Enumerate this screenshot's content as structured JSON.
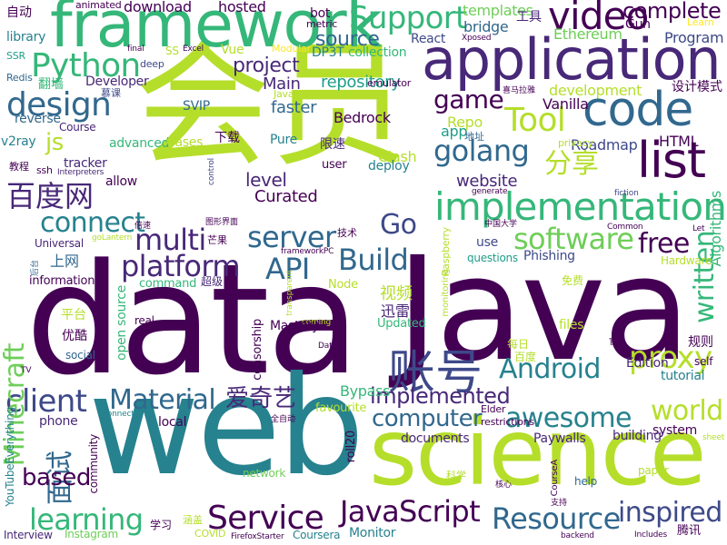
{
  "palette": {
    "dark_purple": "#440154",
    "indigo": "#482878",
    "blue": "#3e4989",
    "slate_blue": "#31688e",
    "teal_blue": "#26828e",
    "teal": "#1f9e89",
    "green": "#35b779",
    "light_green": "#6ece58",
    "lime": "#b5de2b",
    "yellow": "#fde725"
  },
  "words": [
    {
      "text": "data",
      "color": "#440154"
    },
    {
      "text": "Java",
      "color": "#440154"
    },
    {
      "text": "web",
      "color": "#26828e"
    },
    {
      "text": "会员",
      "color": "#b5de2b"
    },
    {
      "text": "science",
      "color": "#b5de2b"
    },
    {
      "text": "application",
      "color": "#482878"
    },
    {
      "text": "framework",
      "color": "#35b779"
    },
    {
      "text": "code",
      "color": "#31688e"
    },
    {
      "text": "list",
      "color": "#440154"
    },
    {
      "text": "implementation",
      "color": "#35b779"
    },
    {
      "text": "账号",
      "color": "#3e4989"
    },
    {
      "text": "video",
      "color": "#440154"
    },
    {
      "text": "Python",
      "color": "#35b779"
    },
    {
      "text": "design",
      "color": "#31688e"
    },
    {
      "text": "Support",
      "color": "#35b779"
    },
    {
      "text": "Tool",
      "color": "#b5de2b"
    },
    {
      "text": "game",
      "color": "#440154"
    },
    {
      "text": "golang",
      "color": "#31688e"
    },
    {
      "text": "分享",
      "color": "#b5de2b"
    },
    {
      "text": "百度网",
      "color": "#482878"
    },
    {
      "text": "Service",
      "color": "#440154"
    },
    {
      "text": "JavaScript",
      "color": "#440154"
    },
    {
      "text": "Resource",
      "color": "#31688e"
    },
    {
      "text": "learning",
      "color": "#35b779"
    },
    {
      "text": "Build",
      "color": "#31688e"
    },
    {
      "text": "platform",
      "color": "#482878"
    },
    {
      "text": "API",
      "color": "#31688e"
    },
    {
      "text": "server",
      "color": "#31688e"
    },
    {
      "text": "software",
      "color": "#6ece58"
    },
    {
      "text": "multi",
      "color": "#482878"
    },
    {
      "text": "connect",
      "color": "#26828e"
    },
    {
      "text": "client",
      "color": "#3e4989"
    },
    {
      "text": "Material",
      "color": "#31688e"
    },
    {
      "text": "Android",
      "color": "#26828e"
    },
    {
      "text": "awesome",
      "color": "#26828e"
    },
    {
      "text": "proxy",
      "color": "#b5de2b"
    },
    {
      "text": "written",
      "color": "#35b779"
    },
    {
      "text": "free",
      "color": "#440154"
    },
    {
      "text": "world",
      "color": "#b5de2b"
    },
    {
      "text": "inspired",
      "color": "#3e4989"
    },
    {
      "text": "Minecraft",
      "color": "#6ece58"
    },
    {
      "text": "面试",
      "color": "#31688e"
    },
    {
      "text": "based",
      "color": "#440154"
    },
    {
      "text": "爱奇艺",
      "color": "#482878"
    },
    {
      "text": "computer",
      "color": "#31688e"
    },
    {
      "text": "implemented",
      "color": "#482878"
    },
    {
      "text": "Go",
      "color": "#3e4989"
    },
    {
      "text": "js",
      "color": "#b5de2b"
    },
    {
      "text": "complete",
      "color": "#440154"
    },
    {
      "text": "project",
      "color": "#482878"
    },
    {
      "text": "source",
      "color": "#31688e"
    },
    {
      "text": "repository",
      "color": "#1f9e89"
    },
    {
      "text": "website",
      "color": "#482878"
    },
    {
      "text": "level",
      "color": "#482878"
    },
    {
      "text": "Curated",
      "color": "#440154"
    },
    {
      "text": "Main",
      "color": "#482878"
    },
    {
      "text": "faster",
      "color": "#31688e"
    },
    {
      "text": "Bedrock",
      "color": "#440154"
    },
    {
      "text": "development",
      "color": "#b5de2b"
    },
    {
      "text": "Vanilla",
      "color": "#440154"
    },
    {
      "text": "Repo",
      "color": "#b5de2b"
    },
    {
      "text": "app",
      "color": "#1f9e89"
    },
    {
      "text": "Algorithms",
      "color": "#35b779"
    },
    {
      "text": "HTML",
      "color": "#440154"
    },
    {
      "text": "Roadmap",
      "color": "#3e4989"
    },
    {
      "text": "privacy",
      "color": "#b5de2b"
    },
    {
      "text": "Ethereum",
      "color": "#6ece58"
    },
    {
      "text": "Program",
      "color": "#3e4989"
    },
    {
      "text": "Gun",
      "color": "#440154"
    },
    {
      "text": "templates",
      "color": "#6ece58"
    },
    {
      "text": "bridge",
      "color": "#31688e"
    },
    {
      "text": "React",
      "color": "#3e4989"
    },
    {
      "text": "collection",
      "color": "#35b779"
    },
    {
      "text": "DP3T",
      "color": "#26828e"
    },
    {
      "text": "emulator",
      "color": "#440154"
    },
    {
      "text": "hosted",
      "color": "#440154"
    },
    {
      "text": "download",
      "color": "#440154"
    },
    {
      "text": "animated",
      "color": "#440154"
    },
    {
      "text": "bot",
      "color": "#440154"
    },
    {
      "text": "metric",
      "color": "#440154"
    },
    {
      "text": "Xposed",
      "color": "#440154"
    },
    {
      "text": "工具",
      "color": "#482878"
    },
    {
      "text": "Learn",
      "color": "#fde725"
    },
    {
      "text": "Vue",
      "color": "#b5de2b"
    },
    {
      "text": "Modular",
      "color": "#fde725"
    },
    {
      "text": "SS",
      "color": "#b5de2b"
    },
    {
      "text": "Excel",
      "color": "#440154"
    },
    {
      "text": "final",
      "color": "#440154"
    },
    {
      "text": "自动",
      "color": "#440154"
    },
    {
      "text": "library",
      "color": "#26828e"
    },
    {
      "text": "SSR",
      "color": "#1f9e89"
    },
    {
      "text": "Redis",
      "color": "#31688e"
    },
    {
      "text": "翻墙",
      "color": "#35b779"
    },
    {
      "text": "deep",
      "color": "#3e4989"
    },
    {
      "text": "Developer",
      "color": "#482878"
    },
    {
      "text": "慕课",
      "color": "#3e4989"
    },
    {
      "text": "SVIP",
      "color": "#31688e"
    },
    {
      "text": "JavaA",
      "color": "#b5de2b"
    },
    {
      "text": "喜马拉雅",
      "color": "#440154"
    },
    {
      "text": "设计模式",
      "color": "#440154"
    },
    {
      "text": "reverse",
      "color": "#31688e"
    },
    {
      "text": "Course",
      "color": "#482878"
    },
    {
      "text": "advanced",
      "color": "#35b779"
    },
    {
      "text": "Cases",
      "color": "#b5de2b"
    },
    {
      "text": "下载",
      "color": "#440154"
    },
    {
      "text": "Pure",
      "color": "#26828e"
    },
    {
      "text": "限速",
      "color": "#482878"
    },
    {
      "text": "user",
      "color": "#440154"
    },
    {
      "text": "地址",
      "color": "#31688e"
    },
    {
      "text": "v2ray",
      "color": "#26828e"
    },
    {
      "text": "教程",
      "color": "#440154"
    },
    {
      "text": "tracker",
      "color": "#482878"
    },
    {
      "text": "ssh",
      "color": "#440154"
    },
    {
      "text": "Interpreters",
      "color": "#482878"
    },
    {
      "text": "allow",
      "color": "#440154"
    },
    {
      "text": "control",
      "color": "#3e4989"
    },
    {
      "text": "Clash",
      "color": "#b5de2b"
    },
    {
      "text": "deploy",
      "color": "#26828e"
    },
    {
      "text": "generate",
      "color": "#440154"
    },
    {
      "text": "fiction",
      "color": "#3e4989"
    },
    {
      "text": "Common",
      "color": "#440154"
    },
    {
      "text": "Let",
      "color": "#440154"
    },
    {
      "text": "倍速",
      "color": "#440154"
    },
    {
      "text": "图形界面",
      "color": "#440154"
    },
    {
      "text": "中国大学",
      "color": "#440154"
    },
    {
      "text": "技术",
      "color": "#440154"
    },
    {
      "text": "芒果",
      "color": "#440154"
    },
    {
      "text": "goLantern",
      "color": "#b5de2b"
    },
    {
      "text": "Universal",
      "color": "#482878"
    },
    {
      "text": "use",
      "color": "#3e4989"
    },
    {
      "text": "Phishing",
      "color": "#3e4989"
    },
    {
      "text": "questions",
      "color": "#1f9e89"
    },
    {
      "text": "Hardware",
      "color": "#b5de2b"
    },
    {
      "text": "frameworkPC",
      "color": "#440154"
    },
    {
      "text": "上网",
      "color": "#31688e"
    },
    {
      "text": "后台",
      "color": "#31688e"
    },
    {
      "text": "information",
      "color": "#440154"
    },
    {
      "text": "command",
      "color": "#35b779"
    },
    {
      "text": "超级",
      "color": "#482878"
    },
    {
      "text": "Node",
      "color": "#b5de2b"
    },
    {
      "text": "视频",
      "color": "#b5de2b"
    },
    {
      "text": "迅雷",
      "color": "#482878"
    },
    {
      "text": "免费",
      "color": "#b5de2b"
    },
    {
      "text": "monitoring",
      "color": "#b5de2b"
    },
    {
      "text": "Raspberry",
      "color": "#b5de2b"
    },
    {
      "text": "transparent",
      "color": "#b5de2b"
    },
    {
      "text": "coming",
      "color": "#b5de2b"
    },
    {
      "text": "平台",
      "color": "#b5de2b"
    },
    {
      "text": "优酷",
      "color": "#440154"
    },
    {
      "text": "real",
      "color": "#440154"
    },
    {
      "text": "open source",
      "color": "#35b779"
    },
    {
      "text": "Updated",
      "color": "#35b779"
    },
    {
      "text": "files",
      "color": "#b5de2b"
    },
    {
      "text": "每日",
      "color": "#b5de2b"
    },
    {
      "text": "官方",
      "color": "#440154"
    },
    {
      "text": "规则",
      "color": "#440154"
    },
    {
      "text": "百度",
      "color": "#b5de2b"
    },
    {
      "text": "Edition",
      "color": "#482878"
    },
    {
      "text": "self",
      "color": "#440154"
    },
    {
      "text": "tutorial",
      "color": "#26828e"
    },
    {
      "text": "social",
      "color": "#31688e"
    },
    {
      "text": "Mastery",
      "color": "#440154"
    },
    {
      "text": "censorship",
      "color": "#440154"
    },
    {
      "text": "DataAll",
      "color": "#440154"
    },
    {
      "text": "TV",
      "color": "#440154"
    },
    {
      "text": "phone",
      "color": "#482878"
    },
    {
      "text": "connection",
      "color": "#26828e"
    },
    {
      "text": "local",
      "color": "#440154"
    },
    {
      "text": "Bypass",
      "color": "#35b779"
    },
    {
      "text": "favourite",
      "color": "#b5de2b"
    },
    {
      "text": "Elder",
      "color": "#440154"
    },
    {
      "text": "restrictions",
      "color": "#440154"
    },
    {
      "text": "system",
      "color": "#440154"
    },
    {
      "text": "sheet",
      "color": "#b5de2b"
    },
    {
      "text": "building",
      "color": "#482878"
    },
    {
      "text": "Paywalls",
      "color": "#482878"
    },
    {
      "text": "documents",
      "color": "#482878"
    },
    {
      "text": "全自动",
      "color": "#440154"
    },
    {
      "text": "YouTubeEverything",
      "color": "#26828e"
    },
    {
      "text": "network",
      "color": "#6ece58"
    },
    {
      "text": "roll20",
      "color": "#440154"
    },
    {
      "text": "community",
      "color": "#440154"
    },
    {
      "text": "科学",
      "color": "#b5de2b"
    },
    {
      "text": "核心",
      "color": "#440154"
    },
    {
      "text": "CourseA",
      "color": "#440154"
    },
    {
      "text": "支持",
      "color": "#440154"
    },
    {
      "text": "help",
      "color": "#31688e"
    },
    {
      "text": "paper",
      "color": "#b5de2b"
    },
    {
      "text": "Interview",
      "color": "#482878"
    },
    {
      "text": "Instagram",
      "color": "#6ece58"
    },
    {
      "text": "学习",
      "color": "#440154"
    },
    {
      "text": "涵盖",
      "color": "#b5de2b"
    },
    {
      "text": "COVID",
      "color": "#b5de2b"
    },
    {
      "text": "FirefoxStarter",
      "color": "#440154"
    },
    {
      "text": "Coursera",
      "color": "#26828e"
    },
    {
      "text": "Monitor",
      "color": "#26828e"
    },
    {
      "text": "backend",
      "color": "#440154"
    },
    {
      "text": "Includes",
      "color": "#440154"
    },
    {
      "text": "腾讯",
      "color": "#440154"
    }
  ]
}
